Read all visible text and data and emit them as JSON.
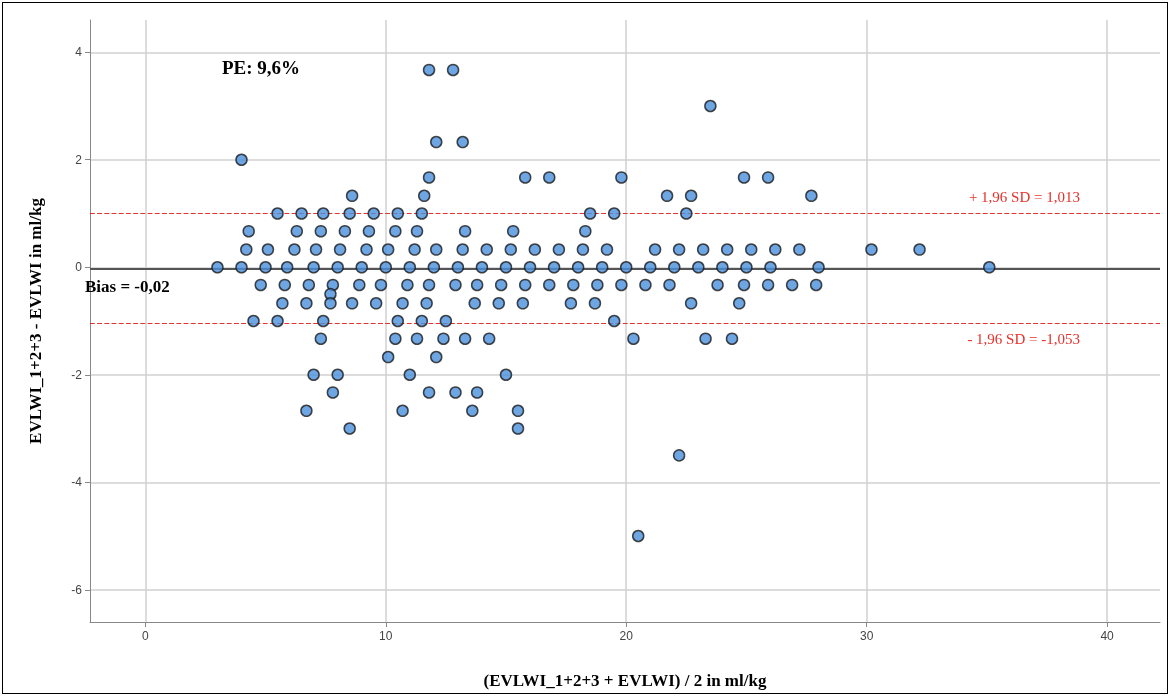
{
  "chart_data": {
    "type": "scatter",
    "xlabel": "(EVLWI_1+2+3 + EVLWI) / 2 in ml/kg",
    "ylabel": "EVLWI_1+2+3 - EVLWI in ml/kg",
    "annotations": [
      "PE: 9,6%"
    ],
    "color": "#4a8fdc",
    "marker": "circle",
    "grid": true,
    "xlim": [
      -2.3,
      42.2
    ],
    "xticks": [
      0,
      10,
      20,
      30,
      40
    ],
    "ylim": [
      -6.6,
      4.6
    ],
    "yticks": [
      -6,
      -4,
      -2,
      0,
      2,
      4
    ],
    "ref_lines": [
      {
        "axis": "y",
        "value": -0.02,
        "label": "Bias = -0,02",
        "color": "#555555",
        "line_style": "solid"
      },
      {
        "axis": "y",
        "value": 1.013,
        "label": "+ 1,96 SD = 1,013",
        "color": "#e5312b",
        "line_style": "dashed"
      },
      {
        "axis": "y",
        "value": -1.053,
        "label": "- 1,96 SD = -1,053",
        "color": "#e5312b",
        "line_style": "dashed"
      }
    ],
    "x": [
      11.8,
      12.8,
      23.5,
      12.1,
      13.2,
      4.0,
      11.8,
      15.8,
      16.8,
      19.8,
      24.9,
      25.9,
      8.6,
      11.6,
      21.7,
      22.7,
      27.7,
      5.5,
      6.5,
      7.4,
      8.5,
      9.5,
      10.5,
      11.5,
      18.5,
      19.5,
      22.5,
      4.3,
      6.3,
      7.3,
      8.3,
      9.3,
      10.4,
      11.3,
      13.3,
      15.3,
      18.3,
      4.2,
      5.1,
      6.2,
      7.1,
      8.1,
      9.2,
      10.1,
      11.2,
      12.1,
      13.2,
      14.2,
      15.2,
      16.2,
      17.2,
      18.2,
      19.2,
      21.2,
      22.2,
      23.2,
      24.2,
      25.2,
      26.2,
      27.2,
      30.2,
      32.2,
      3.0,
      4.0,
      5.0,
      5.9,
      7.0,
      8.0,
      9.0,
      10.0,
      11.0,
      12.0,
      13.0,
      14.0,
      15.0,
      16.0,
      17.0,
      18.0,
      19.0,
      20.0,
      21.0,
      22.0,
      23.0,
      24.0,
      25.0,
      26.0,
      28.0,
      35.1,
      4.8,
      5.8,
      6.8,
      7.8,
      8.9,
      9.8,
      10.9,
      11.8,
      12.9,
      13.8,
      14.8,
      15.8,
      16.8,
      17.8,
      18.8,
      19.8,
      20.8,
      21.8,
      23.8,
      24.9,
      25.9,
      26.9,
      27.9,
      7.7,
      5.7,
      6.7,
      7.7,
      8.6,
      9.6,
      10.7,
      11.7,
      13.7,
      14.7,
      15.7,
      17.7,
      18.7,
      22.7,
      24.7,
      4.5,
      5.5,
      7.4,
      10.5,
      11.5,
      12.5,
      19.5,
      7.3,
      10.4,
      11.3,
      12.4,
      13.3,
      14.3,
      20.3,
      23.3,
      24.4,
      10.1,
      12.1,
      7.0,
      8.0,
      11.0,
      15.0,
      7.8,
      11.8,
      12.9,
      13.8,
      6.7,
      10.7,
      13.6,
      15.5,
      8.5,
      15.5,
      22.2,
      20.5
    ],
    "values": [
      3.67,
      3.67,
      3.0,
      2.33,
      2.33,
      2.0,
      1.67,
      1.67,
      1.67,
      1.67,
      1.67,
      1.67,
      1.33,
      1.33,
      1.33,
      1.33,
      1.33,
      1.0,
      1.0,
      1.0,
      1.0,
      1.0,
      1.0,
      1.0,
      1.0,
      1.0,
      1.0,
      0.67,
      0.67,
      0.67,
      0.67,
      0.67,
      0.67,
      0.67,
      0.67,
      0.67,
      0.67,
      0.33,
      0.33,
      0.33,
      0.33,
      0.33,
      0.33,
      0.33,
      0.33,
      0.33,
      0.33,
      0.33,
      0.33,
      0.33,
      0.33,
      0.33,
      0.33,
      0.33,
      0.33,
      0.33,
      0.33,
      0.33,
      0.33,
      0.33,
      0.33,
      0.33,
      0,
      0,
      0,
      0,
      0,
      0,
      0,
      0,
      0,
      0,
      0,
      0,
      0,
      0,
      0,
      0,
      0,
      0,
      0,
      0,
      0,
      0,
      0,
      0,
      0,
      0,
      -0.33,
      -0.33,
      -0.33,
      -0.33,
      -0.33,
      -0.33,
      -0.33,
      -0.33,
      -0.33,
      -0.33,
      -0.33,
      -0.33,
      -0.33,
      -0.33,
      -0.33,
      -0.33,
      -0.33,
      -0.33,
      -0.33,
      -0.33,
      -0.33,
      -0.33,
      -0.33,
      -0.5,
      -0.67,
      -0.67,
      -0.67,
      -0.67,
      -0.67,
      -0.67,
      -0.67,
      -0.67,
      -0.67,
      -0.67,
      -0.67,
      -0.67,
      -0.67,
      -0.67,
      -1.0,
      -1.0,
      -1.0,
      -1.0,
      -1.0,
      -1.0,
      -1.0,
      -1.33,
      -1.33,
      -1.33,
      -1.33,
      -1.33,
      -1.33,
      -1.33,
      -1.33,
      -1.33,
      -1.67,
      -1.67,
      -2.0,
      -2.0,
      -2.0,
      -2.0,
      -2.33,
      -2.33,
      -2.33,
      -2.33,
      -2.67,
      -2.67,
      -2.67,
      -2.67,
      -3.0,
      -3.0,
      -3.5,
      -5.0
    ]
  }
}
